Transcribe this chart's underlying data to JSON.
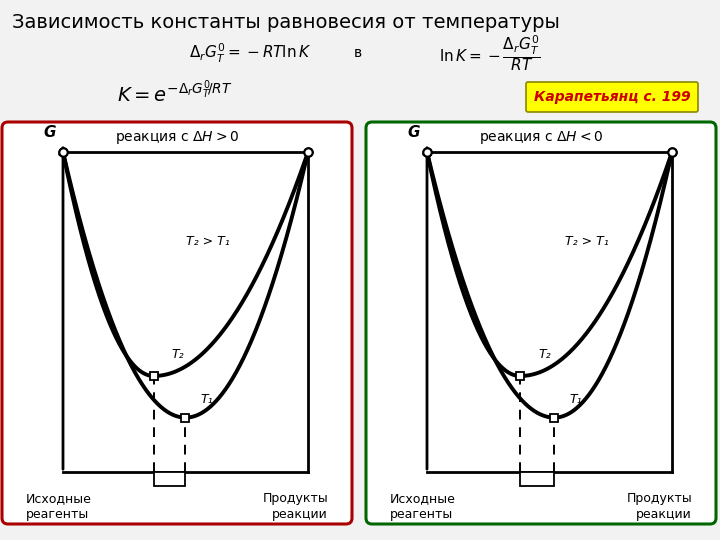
{
  "title": "Зависимость константы равновесия от температуры",
  "title_fontsize": 14,
  "bg_color": "#f2f2f2",
  "karapetyanc_text": "Карапетьянц с. 199",
  "karapetyanc_bg": "#ffff00",
  "left_box_color": "#aa0000",
  "right_box_color": "#006600",
  "left_label": "реакция с ΔH > 0",
  "right_label": "реакция с ΔH < 0",
  "G_label": "G",
  "T2_T1_label": "T₂ > T₁",
  "T2_label": "T₂",
  "T1_label": "T₁",
  "left_bottom_left": "Исходные\nреагенты",
  "left_bottom_right": "Продукты\nреакции",
  "right_bottom_left": "Исходные\nреагенты",
  "right_bottom_right": "Продукты\nреакции"
}
